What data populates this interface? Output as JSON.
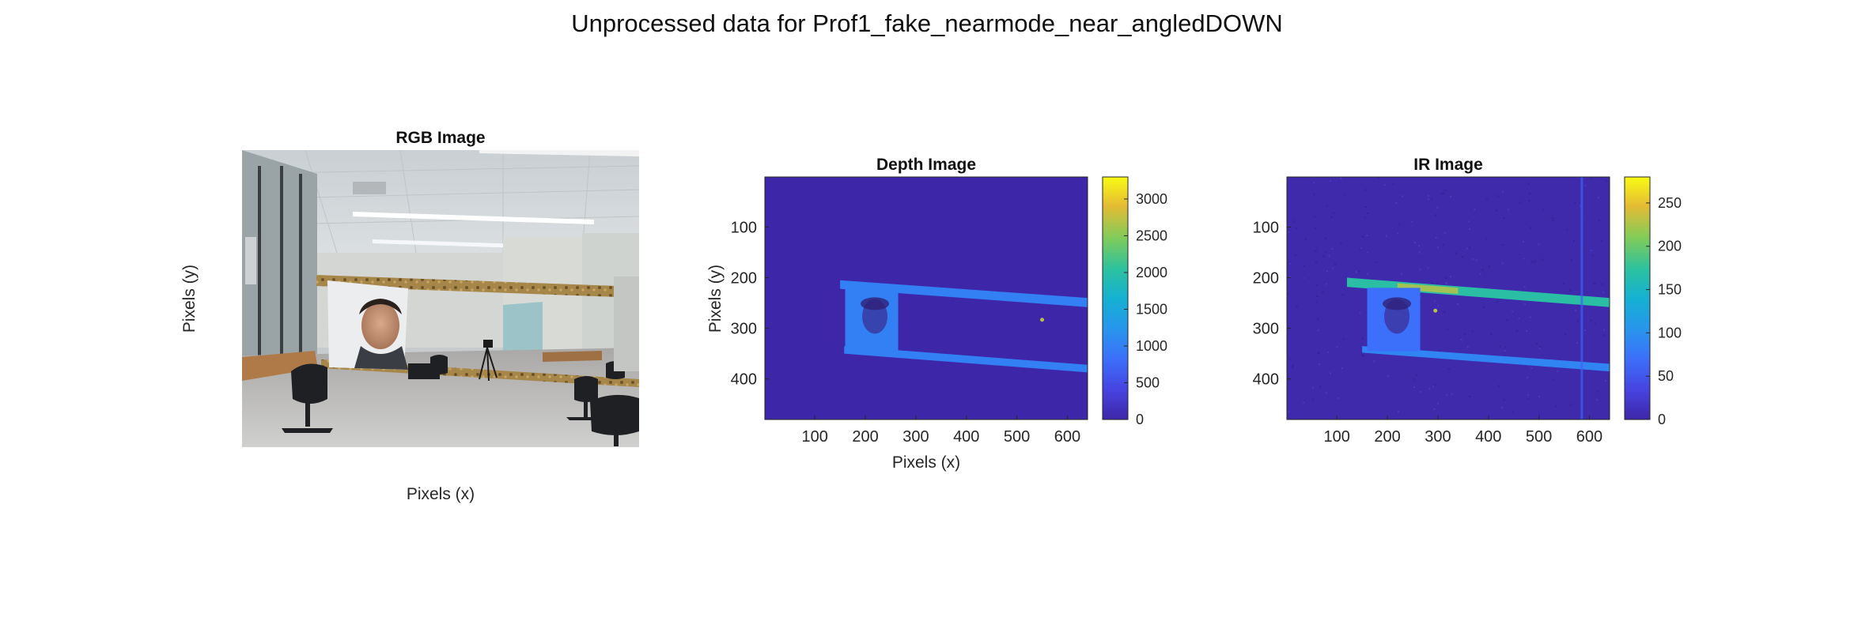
{
  "figure_title": "Unprocessed data for Prof1_fake_nearmode_near_angledDOWN",
  "chart_data": [
    {
      "type": "image",
      "title": "RGB Image",
      "xlabel": "Pixels (x)",
      "ylabel": "Pixels (y)",
      "axis_ticks_visible": false
    },
    {
      "type": "heatmap",
      "title": "Depth Image",
      "xlabel": "Pixels (x)",
      "ylabel": "Pixels (y)",
      "xlim": [
        1,
        640
      ],
      "ylim": [
        1,
        480
      ],
      "y_reversed": true,
      "xticks": [
        100,
        200,
        300,
        400,
        500,
        600
      ],
      "yticks": [
        100,
        200,
        300,
        400
      ],
      "colormap": "parula",
      "colorbar": {
        "range": [
          0,
          3300
        ],
        "ticks": [
          0,
          500,
          1000,
          1500,
          2000,
          2500,
          3000
        ]
      },
      "features": [
        {
          "name": "upper_bar",
          "x": [
            150,
            640
          ],
          "y_left": [
            205,
            222
          ],
          "y_right": [
            240,
            258
          ],
          "value": 1000
        },
        {
          "name": "lower_bar",
          "x": [
            158,
            640
          ],
          "y_left": [
            335,
            350
          ],
          "y_right": [
            372,
            387
          ],
          "value": 1000
        },
        {
          "name": "face_poster",
          "x": [
            160,
            265
          ],
          "y": [
            220,
            345
          ],
          "value": 1000
        },
        {
          "name": "hot_spot",
          "x": 550,
          "y": 283,
          "value": 2700
        }
      ]
    },
    {
      "type": "heatmap",
      "title": "IR Image",
      "xlabel": "",
      "ylabel": "",
      "xlim": [
        1,
        640
      ],
      "ylim": [
        1,
        480
      ],
      "y_reversed": true,
      "xticks": [
        100,
        200,
        300,
        400,
        500,
        600
      ],
      "yticks": [
        100,
        200,
        300,
        400
      ],
      "colormap": "parula",
      "colorbar": {
        "range": [
          0,
          280
        ],
        "ticks": [
          0,
          50,
          100,
          150,
          200,
          250
        ]
      },
      "features": [
        {
          "name": "upper_bar",
          "x": [
            120,
            640
          ],
          "y_left": [
            200,
            218
          ],
          "y_right": [
            240,
            258
          ],
          "value": 170,
          "peak_value": 230,
          "peak_x": [
            220,
            340
          ]
        },
        {
          "name": "lower_bar",
          "x": [
            150,
            640
          ],
          "y_left": [
            335,
            348
          ],
          "y_right": [
            370,
            385
          ],
          "value": 90
        },
        {
          "name": "face_poster",
          "x": [
            160,
            265
          ],
          "y": [
            220,
            345
          ],
          "value": 70
        },
        {
          "name": "vertical_edge",
          "x": 585,
          "y": [
            1,
            480
          ],
          "value": 60
        },
        {
          "name": "bright_dot",
          "x": 295,
          "y": 265,
          "value": 230
        }
      ]
    }
  ]
}
